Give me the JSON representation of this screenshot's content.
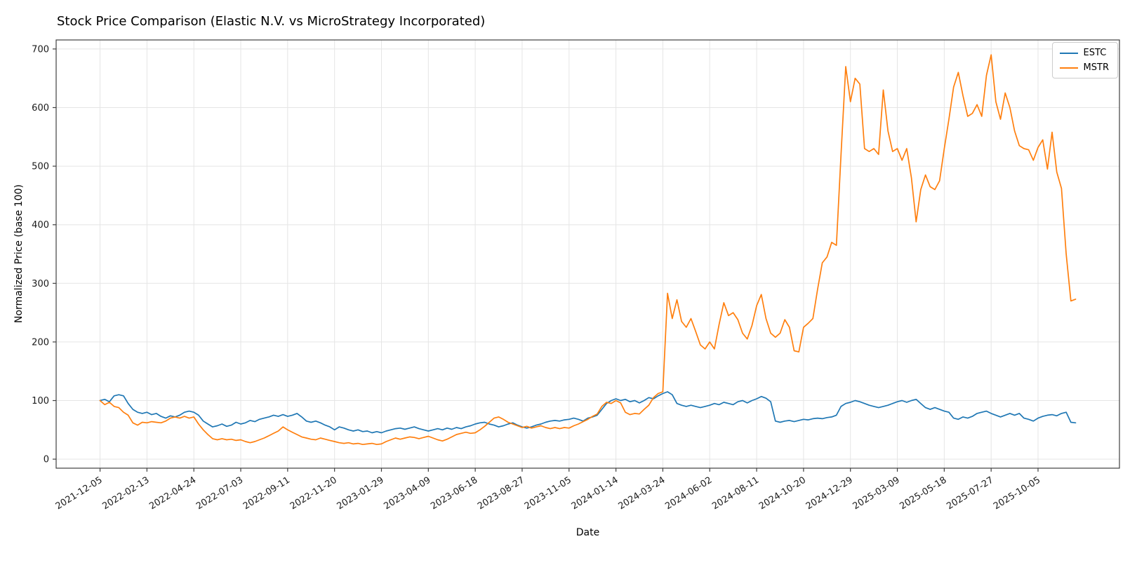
{
  "title": "Stock Price Comparison (Elastic N.V. vs MicroStrategy Incorporated)",
  "chart_data": {
    "type": "line",
    "title": "Stock Price Comparison (Elastic N.V. vs MicroStrategy Incorporated)",
    "xlabel": "Date",
    "ylabel": "Normalized Price (base 100)",
    "x_start_date": "2021-12-05",
    "x_interval_days": 7,
    "x_tick_labels": [
      "2021-12-05",
      "2022-02-13",
      "2022-04-24",
      "2022-07-03",
      "2022-09-11",
      "2022-11-20",
      "2023-01-29",
      "2023-04-09",
      "2023-06-18",
      "2023-08-27",
      "2023-11-05",
      "2024-01-14",
      "2024-03-24",
      "2024-06-02",
      "2024-08-11",
      "2024-10-20",
      "2024-12-29",
      "2025-03-09",
      "2025-05-18",
      "2025-07-27",
      "2025-10-05"
    ],
    "x_tick_indices": [
      0,
      10,
      20,
      30,
      40,
      50,
      60,
      70,
      80,
      90,
      100,
      110,
      120,
      130,
      140,
      150,
      160,
      170,
      180,
      190,
      200
    ],
    "ylim": [
      0,
      700
    ],
    "y_ticks": [
      0,
      100,
      200,
      300,
      400,
      500,
      600,
      700
    ],
    "grid": true,
    "legend_position": "upper right",
    "series": [
      {
        "name": "ESTC",
        "color": "#1f77b4",
        "values": [
          100,
          102,
          98,
          108,
          110,
          108,
          95,
          85,
          80,
          78,
          80,
          76,
          78,
          73,
          70,
          74,
          72,
          75,
          80,
          82,
          80,
          75,
          65,
          60,
          55,
          57,
          60,
          56,
          58,
          63,
          60,
          62,
          66,
          64,
          68,
          70,
          72,
          75,
          73,
          76,
          73,
          75,
          78,
          72,
          65,
          63,
          65,
          62,
          58,
          55,
          50,
          55,
          53,
          50,
          48,
          50,
          47,
          48,
          45,
          47,
          45,
          48,
          50,
          52,
          53,
          51,
          53,
          55,
          52,
          50,
          48,
          50,
          52,
          50,
          53,
          51,
          54,
          52,
          55,
          57,
          60,
          62,
          63,
          60,
          58,
          55,
          57,
          60,
          62,
          58,
          55,
          53,
          55,
          58,
          60,
          63,
          65,
          66,
          65,
          67,
          68,
          70,
          68,
          65,
          70,
          72,
          75,
          85,
          95,
          100,
          103,
          100,
          102,
          98,
          100,
          96,
          100,
          105,
          103,
          108,
          112,
          115,
          110,
          95,
          92,
          90,
          92,
          90,
          88,
          90,
          92,
          95,
          93,
          97,
          95,
          93,
          98,
          100,
          96,
          100,
          103,
          107,
          104,
          98,
          65,
          63,
          65,
          66,
          64,
          66,
          68,
          67,
          69,
          70,
          69,
          71,
          72,
          75,
          90,
          95,
          97,
          100,
          98,
          95,
          92,
          90,
          88,
          90,
          92,
          95,
          98,
          100,
          97,
          100,
          102,
          95,
          88,
          85,
          88,
          85,
          82,
          80,
          70,
          68,
          72,
          70,
          73,
          78,
          80,
          82,
          78,
          75,
          72,
          75,
          78,
          75,
          78,
          70,
          68,
          65,
          70,
          73,
          75,
          76,
          74,
          78,
          80,
          63,
          62
        ]
      },
      {
        "name": "MSTR",
        "color": "#ff7f0e",
        "values": [
          100,
          93,
          97,
          90,
          88,
          80,
          75,
          62,
          58,
          63,
          62,
          64,
          63,
          62,
          65,
          70,
          72,
          70,
          73,
          70,
          72,
          60,
          50,
          42,
          35,
          33,
          35,
          33,
          34,
          32,
          33,
          30,
          28,
          30,
          33,
          36,
          40,
          44,
          48,
          55,
          50,
          46,
          42,
          38,
          36,
          34,
          33,
          36,
          34,
          32,
          30,
          28,
          27,
          28,
          26,
          27,
          25,
          26,
          27,
          25,
          26,
          30,
          33,
          36,
          34,
          36,
          38,
          37,
          35,
          37,
          39,
          36,
          33,
          31,
          34,
          38,
          42,
          44,
          46,
          44,
          45,
          50,
          56,
          63,
          70,
          72,
          68,
          63,
          60,
          57,
          54,
          56,
          53,
          55,
          57,
          54,
          52,
          54,
          52,
          54,
          53,
          57,
          60,
          64,
          68,
          73,
          77,
          90,
          97,
          95,
          100,
          96,
          80,
          76,
          78,
          77,
          85,
          92,
          105,
          112,
          115,
          283,
          240,
          272,
          235,
          225,
          240,
          218,
          195,
          188,
          200,
          188,
          230,
          267,
          245,
          250,
          238,
          215,
          205,
          228,
          262,
          281,
          240,
          215,
          208,
          215,
          238,
          225,
          185,
          183,
          225,
          232,
          240,
          290,
          335,
          345,
          370,
          365,
          520,
          670,
          610,
          650,
          640,
          530,
          525,
          530,
          520,
          630,
          560,
          525,
          530,
          510,
          530,
          480,
          405,
          460,
          485,
          465,
          460,
          475,
          530,
          580,
          635,
          660,
          620,
          585,
          590,
          605,
          585,
          655,
          690,
          610,
          580,
          625,
          600,
          560,
          535,
          530,
          528,
          510,
          532,
          545,
          495,
          558,
          490,
          462,
          350,
          270,
          273
        ]
      }
    ]
  }
}
